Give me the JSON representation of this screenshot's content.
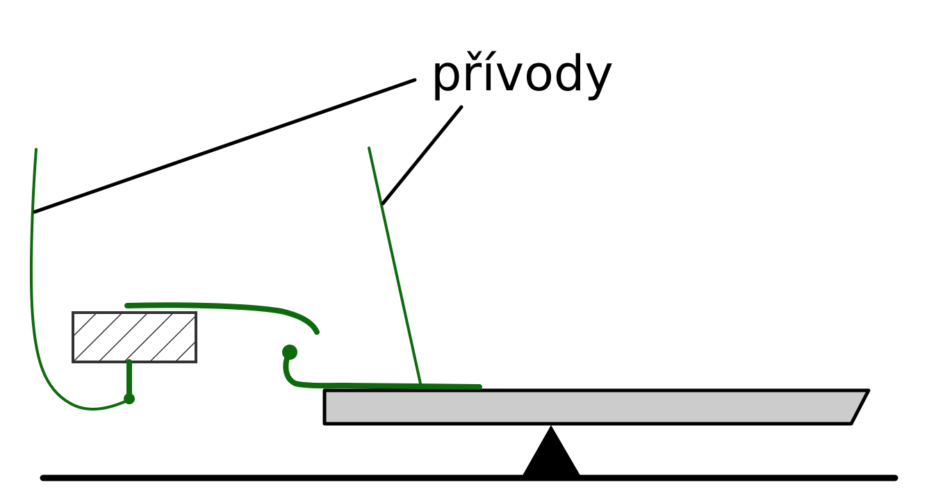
{
  "label": "přívody",
  "colors": {
    "background": "#ffffff",
    "wire": "#0d6b0d",
    "line": "#000000",
    "beam_fill": "#cccccc",
    "block_fill": "#ffffff",
    "hatch": "#333333"
  }
}
